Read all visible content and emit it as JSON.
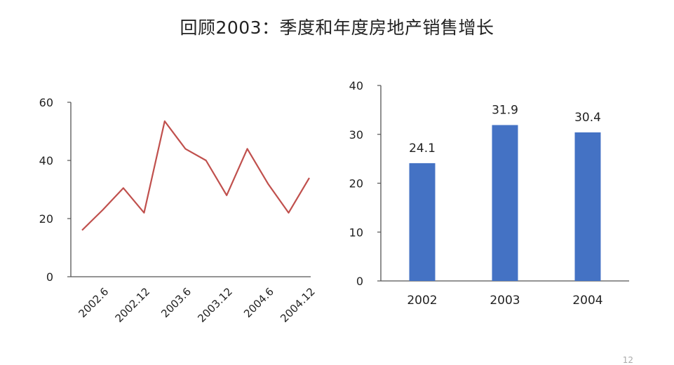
{
  "page": {
    "title": "回顾2003：季度和年度房地产销售增长",
    "page_number": "12"
  },
  "chart_data": [
    {
      "type": "line",
      "x": [
        "2002.3",
        "2002.6",
        "2002.9",
        "2002.12",
        "2003.3",
        "2003.6",
        "2003.9",
        "2003.12",
        "2004.3",
        "2004.6",
        "2004.9",
        "2004.12"
      ],
      "xticklabels": [
        "2002.6",
        "2002.12",
        "2003.6",
        "2003.12",
        "2004.6",
        "2004.12"
      ],
      "series": [
        {
          "values": [
            16,
            23,
            30.5,
            22,
            53.5,
            44,
            40,
            28,
            44,
            32,
            22,
            34
          ],
          "color": "#c0504d"
        }
      ],
      "ylim": [
        0,
        60
      ],
      "yticks": [
        0,
        20,
        40,
        60
      ],
      "grid": false
    },
    {
      "type": "bar",
      "categories": [
        "2002",
        "2003",
        "2004"
      ],
      "values": [
        24.1,
        31.9,
        30.4
      ],
      "data_labels": [
        "24.1",
        "31.9",
        "30.4"
      ],
      "color": "#4472c4",
      "ylim": [
        0,
        40
      ],
      "yticks": [
        0,
        10,
        20,
        30,
        40
      ],
      "grid": false
    }
  ]
}
